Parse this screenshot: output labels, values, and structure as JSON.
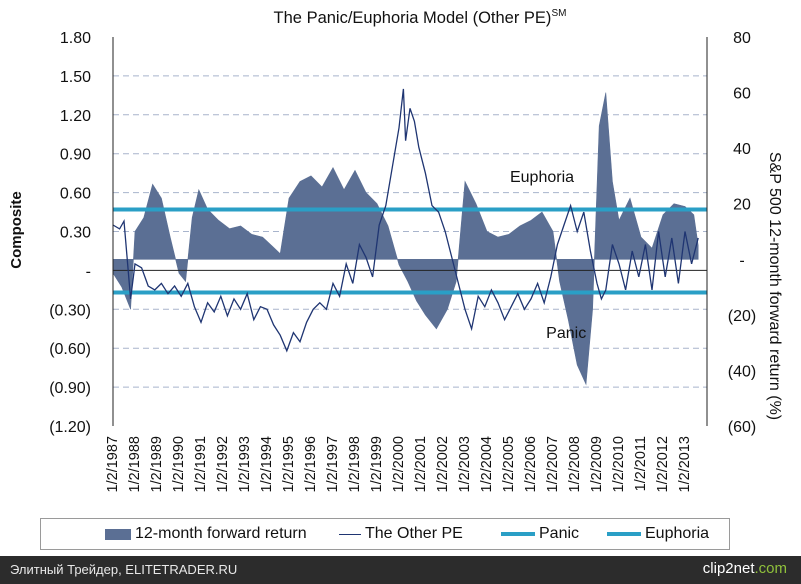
{
  "chart_data": {
    "type": "area+line",
    "title": "The Panic/Euphoria Model (Other PE)",
    "title_superscript": "SM",
    "ylabel_left": "Composite",
    "ylabel_right": "S&P 500 12-month forward return (%)",
    "left_ylim": [
      -1.2,
      1.8
    ],
    "right_ylim": [
      -60,
      80
    ],
    "left_ticks": [
      "1.80",
      "1.50",
      "1.20",
      "0.90",
      "0.60",
      "0.30",
      "-",
      "(0.30)",
      "(0.60)",
      "(0.90)",
      "(1.20)"
    ],
    "right_ticks": [
      "80",
      "60",
      "40",
      "20",
      "-",
      "(20)",
      "(40)",
      "(60)"
    ],
    "x_start_year": 1987,
    "x_end_year": 2014,
    "x_ticks": [
      "1/2/1987",
      "1/2/1988",
      "1/2/1989",
      "1/2/1990",
      "1/2/1991",
      "1/2/1992",
      "1/2/1993",
      "1/2/1994",
      "1/2/1995",
      "1/2/1996",
      "1/2/1997",
      "1/2/1998",
      "1/2/1999",
      "1/2/2000",
      "1/2/2001",
      "1/2/2002",
      "1/2/2003",
      "1/2/2004",
      "1/2/2005",
      "1/2/2006",
      "1/2/2007",
      "1/2/2008",
      "1/2/2009",
      "1/2/2010",
      "1/2/2011",
      "1/2/2012",
      "1/2/2013"
    ],
    "panic_level": -0.17,
    "euphoria_level": 0.47,
    "annotations": [
      {
        "text": "Euphoria",
        "year": 2006.5,
        "composite": 0.68
      },
      {
        "text": "Panic",
        "year": 2007.6,
        "composite": -0.52
      }
    ],
    "forward_return_axis": "right",
    "forward_return_pct": [
      [
        1987.0,
        -5
      ],
      [
        1987.4,
        -10
      ],
      [
        1987.8,
        -18
      ],
      [
        1988.0,
        10
      ],
      [
        1988.4,
        15
      ],
      [
        1988.8,
        27
      ],
      [
        1989.2,
        22
      ],
      [
        1989.6,
        8
      ],
      [
        1990.0,
        -5
      ],
      [
        1990.3,
        -8
      ],
      [
        1990.6,
        15
      ],
      [
        1990.9,
        25
      ],
      [
        1991.3,
        18
      ],
      [
        1991.8,
        14
      ],
      [
        1992.3,
        11
      ],
      [
        1992.8,
        12
      ],
      [
        1993.3,
        9
      ],
      [
        1993.8,
        8
      ],
      [
        1994.2,
        5
      ],
      [
        1994.6,
        2
      ],
      [
        1995.0,
        22
      ],
      [
        1995.5,
        28
      ],
      [
        1996.0,
        30
      ],
      [
        1996.5,
        26
      ],
      [
        1997.0,
        33
      ],
      [
        1997.5,
        25
      ],
      [
        1998.0,
        32
      ],
      [
        1998.5,
        24
      ],
      [
        1999.0,
        20
      ],
      [
        1999.5,
        12
      ],
      [
        2000.0,
        -2
      ],
      [
        2000.4,
        -8
      ],
      [
        2000.8,
        -15
      ],
      [
        2001.2,
        -20
      ],
      [
        2001.7,
        -25
      ],
      [
        2002.2,
        -18
      ],
      [
        2002.6,
        -8
      ],
      [
        2003.0,
        28
      ],
      [
        2003.5,
        20
      ],
      [
        2004.0,
        10
      ],
      [
        2004.5,
        8
      ],
      [
        2005.0,
        9
      ],
      [
        2005.5,
        12
      ],
      [
        2006.0,
        14
      ],
      [
        2006.5,
        17
      ],
      [
        2007.0,
        10
      ],
      [
        2007.3,
        -8
      ],
      [
        2007.7,
        -22
      ],
      [
        2008.1,
        -38
      ],
      [
        2008.5,
        -45
      ],
      [
        2008.8,
        -18
      ],
      [
        2009.1,
        48
      ],
      [
        2009.4,
        60
      ],
      [
        2009.7,
        28
      ],
      [
        2010.0,
        14
      ],
      [
        2010.5,
        22
      ],
      [
        2011.0,
        8
      ],
      [
        2011.5,
        4
      ],
      [
        2012.0,
        16
      ],
      [
        2012.5,
        20
      ],
      [
        2013.0,
        19
      ],
      [
        2013.4,
        16
      ],
      [
        2013.6,
        5
      ]
    ],
    "the_other_pe_composite": [
      [
        1987.0,
        0.35
      ],
      [
        1987.3,
        0.32
      ],
      [
        1987.5,
        0.38
      ],
      [
        1987.8,
        -0.22
      ],
      [
        1988.0,
        0.05
      ],
      [
        1988.3,
        0.02
      ],
      [
        1988.6,
        -0.12
      ],
      [
        1988.9,
        -0.15
      ],
      [
        1989.2,
        -0.1
      ],
      [
        1989.5,
        -0.18
      ],
      [
        1989.8,
        -0.12
      ],
      [
        1990.1,
        -0.2
      ],
      [
        1990.4,
        -0.1
      ],
      [
        1990.7,
        -0.28
      ],
      [
        1991.0,
        -0.4
      ],
      [
        1991.3,
        -0.25
      ],
      [
        1991.6,
        -0.32
      ],
      [
        1991.9,
        -0.2
      ],
      [
        1992.2,
        -0.35
      ],
      [
        1992.5,
        -0.22
      ],
      [
        1992.8,
        -0.3
      ],
      [
        1993.1,
        -0.18
      ],
      [
        1993.4,
        -0.38
      ],
      [
        1993.7,
        -0.28
      ],
      [
        1994.0,
        -0.3
      ],
      [
        1994.3,
        -0.42
      ],
      [
        1994.6,
        -0.5
      ],
      [
        1994.9,
        -0.62
      ],
      [
        1995.2,
        -0.48
      ],
      [
        1995.5,
        -0.55
      ],
      [
        1995.8,
        -0.4
      ],
      [
        1996.1,
        -0.3
      ],
      [
        1996.4,
        -0.25
      ],
      [
        1996.7,
        -0.3
      ],
      [
        1997.0,
        -0.1
      ],
      [
        1997.3,
        -0.2
      ],
      [
        1997.6,
        0.05
      ],
      [
        1997.9,
        -0.1
      ],
      [
        1998.2,
        0.2
      ],
      [
        1998.5,
        0.1
      ],
      [
        1998.8,
        -0.05
      ],
      [
        1999.1,
        0.35
      ],
      [
        1999.4,
        0.5
      ],
      [
        1999.7,
        0.8
      ],
      [
        2000.0,
        1.1
      ],
      [
        2000.2,
        1.4
      ],
      [
        2000.3,
        1.0
      ],
      [
        2000.5,
        1.25
      ],
      [
        2000.7,
        1.15
      ],
      [
        2000.9,
        0.95
      ],
      [
        2001.2,
        0.75
      ],
      [
        2001.5,
        0.5
      ],
      [
        2001.8,
        0.45
      ],
      [
        2002.1,
        0.3
      ],
      [
        2002.4,
        0.1
      ],
      [
        2002.7,
        -0.1
      ],
      [
        2003.0,
        -0.3
      ],
      [
        2003.3,
        -0.45
      ],
      [
        2003.6,
        -0.2
      ],
      [
        2003.9,
        -0.28
      ],
      [
        2004.2,
        -0.15
      ],
      [
        2004.5,
        -0.25
      ],
      [
        2004.8,
        -0.38
      ],
      [
        2005.1,
        -0.28
      ],
      [
        2005.4,
        -0.18
      ],
      [
        2005.7,
        -0.3
      ],
      [
        2006.0,
        -0.22
      ],
      [
        2006.3,
        -0.1
      ],
      [
        2006.6,
        -0.25
      ],
      [
        2006.9,
        -0.05
      ],
      [
        2007.2,
        0.2
      ],
      [
        2007.5,
        0.35
      ],
      [
        2007.8,
        0.5
      ],
      [
        2008.1,
        0.3
      ],
      [
        2008.4,
        0.45
      ],
      [
        2008.7,
        0.15
      ],
      [
        2009.0,
        -0.1
      ],
      [
        2009.2,
        -0.22
      ],
      [
        2009.4,
        -0.15
      ],
      [
        2009.7,
        0.2
      ],
      [
        2010.0,
        0.05
      ],
      [
        2010.3,
        -0.15
      ],
      [
        2010.6,
        0.15
      ],
      [
        2010.9,
        -0.05
      ],
      [
        2011.2,
        0.2
      ],
      [
        2011.5,
        -0.15
      ],
      [
        2011.8,
        0.3
      ],
      [
        2012.1,
        -0.05
      ],
      [
        2012.4,
        0.25
      ],
      [
        2012.7,
        -0.1
      ],
      [
        2013.0,
        0.3
      ],
      [
        2013.3,
        0.05
      ],
      [
        2013.6,
        0.25
      ]
    ],
    "legend": [
      "12-month forward return",
      "The Other PE",
      "Panic",
      "Euphoria"
    ]
  },
  "colors": {
    "area": "#5b6f94",
    "line": "#1f3572",
    "threshold": "#2a9fc6",
    "grid": "#a8b4cc"
  },
  "footer": {
    "left_text": "Элитный Трейдер, ELITETRADER.RU",
    "brand_main": "clip2net",
    "brand_tld": ".com"
  }
}
